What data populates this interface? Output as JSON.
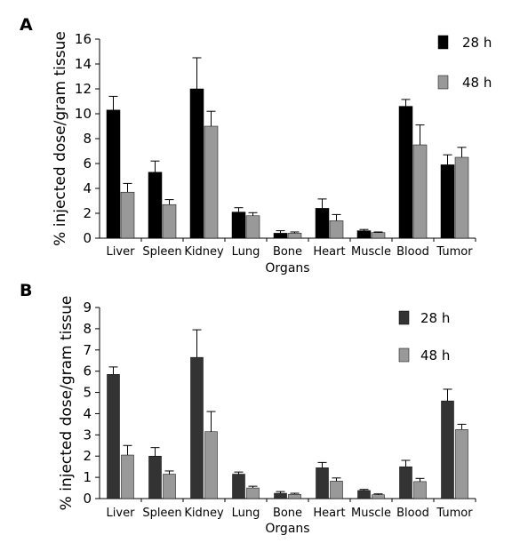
{
  "chart_data": [
    {
      "type": "bar",
      "panel_label": "A",
      "title": "",
      "xlabel": "Organs",
      "ylabel": "% injected dose/gram tissue",
      "ylim": [
        0,
        16
      ],
      "yticks": [
        0,
        2,
        4,
        6,
        8,
        10,
        12,
        14,
        16
      ],
      "categories": [
        "Liver",
        "Spleen",
        "Kidney",
        "Lung",
        "Bone",
        "Heart",
        "Muscle",
        "Blood",
        "Tumor"
      ],
      "series": [
        {
          "name": "28 h",
          "color": "#000000",
          "values": [
            10.3,
            5.3,
            12.0,
            2.1,
            0.4,
            2.4,
            0.6,
            10.6,
            5.9
          ],
          "errors": [
            1.1,
            0.9,
            2.5,
            0.35,
            0.2,
            0.75,
            0.1,
            0.55,
            0.8
          ]
        },
        {
          "name": "48 h",
          "color": "#999999",
          "values": [
            3.7,
            2.7,
            9.0,
            1.8,
            0.4,
            1.4,
            0.45,
            7.5,
            6.5
          ],
          "errors": [
            0.7,
            0.4,
            1.2,
            0.25,
            0.1,
            0.5,
            0.05,
            1.6,
            0.8
          ]
        }
      ],
      "legend_position": "top-right",
      "grid": false
    },
    {
      "type": "bar",
      "panel_label": "B",
      "title": "",
      "xlabel": "Organs",
      "ylabel": "% injected dose/gram tissue",
      "ylim": [
        0,
        9
      ],
      "yticks": [
        0,
        1,
        2,
        3,
        4,
        5,
        6,
        7,
        8,
        9
      ],
      "categories": [
        "Liver",
        "Spleen",
        "Kidney",
        "Lung",
        "Bone",
        "Heart",
        "Muscle",
        "Blood",
        "Tumor"
      ],
      "series": [
        {
          "name": "28 h",
          "color": "#333333",
          "values": [
            5.85,
            2.0,
            6.65,
            1.15,
            0.25,
            1.45,
            0.38,
            1.5,
            4.6
          ],
          "errors": [
            0.35,
            0.4,
            1.3,
            0.1,
            0.08,
            0.25,
            0.05,
            0.3,
            0.55
          ]
        },
        {
          "name": "48 h",
          "color": "#999999",
          "values": [
            2.05,
            1.15,
            3.15,
            0.5,
            0.2,
            0.82,
            0.18,
            0.8,
            3.25
          ],
          "errors": [
            0.45,
            0.15,
            0.95,
            0.08,
            0.05,
            0.15,
            0.04,
            0.15,
            0.25
          ]
        }
      ],
      "legend_position": "top-right",
      "grid": false
    }
  ]
}
